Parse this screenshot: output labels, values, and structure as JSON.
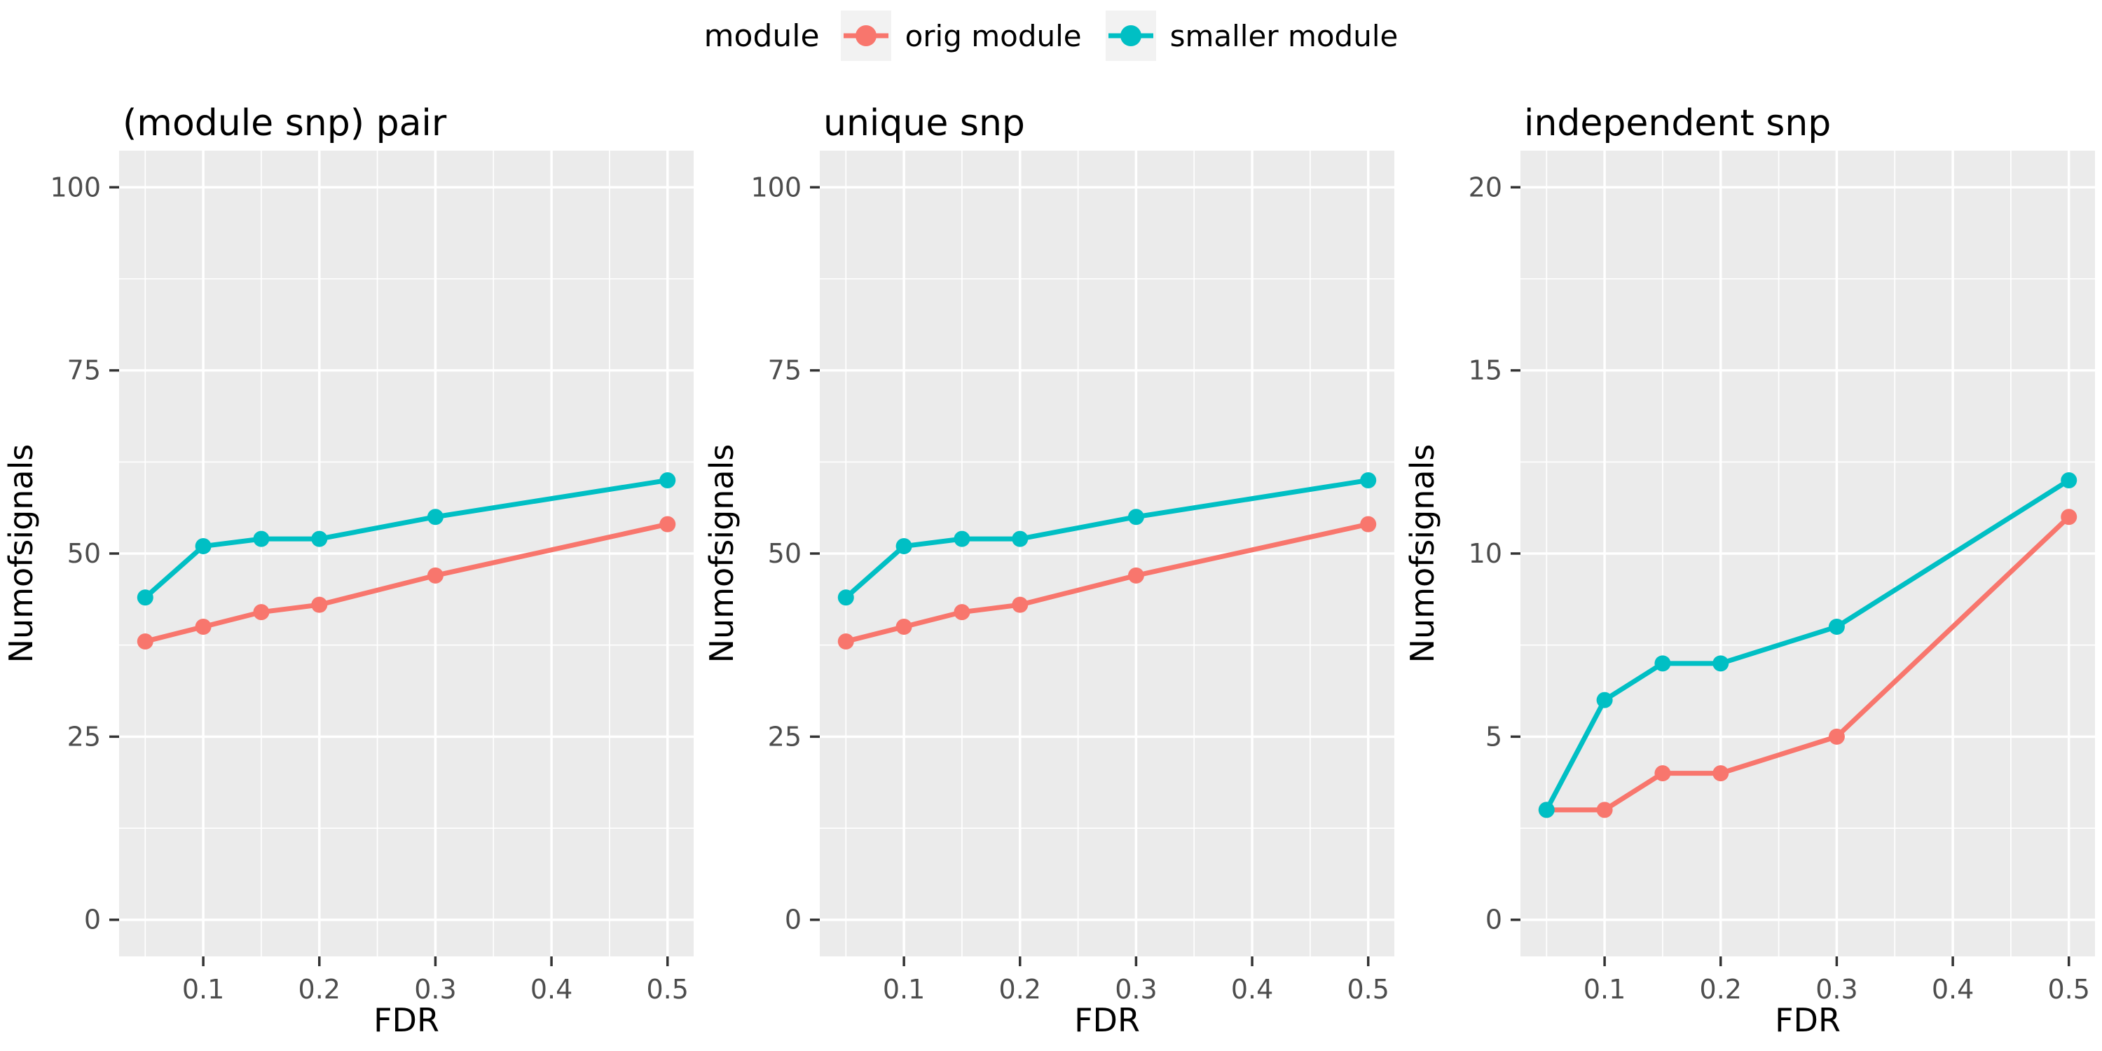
{
  "colors": {
    "orig_module": "#F8766D",
    "smaller_module": "#00BFC4",
    "panel_background": "#EBEBEB",
    "gridline": "#FFFFFF",
    "tick_label": "#4D4D4D",
    "tick_mark": "#333333",
    "title_text": "#000000",
    "legend_key_background": "#F2F2F2"
  },
  "legend": {
    "title": "module",
    "items": [
      {
        "label": "orig module",
        "color": "#F8766D"
      },
      {
        "label": "smaller module",
        "color": "#00BFC4"
      }
    ]
  },
  "chart_data": {
    "type": "line",
    "x": [
      0.05,
      0.1,
      0.15,
      0.2,
      0.3,
      0.5
    ],
    "xticks": [
      0.1,
      0.2,
      0.3,
      0.4,
      0.5
    ],
    "xtick_labels": [
      "0.1",
      "0.2",
      "0.3",
      "0.4",
      "0.5"
    ],
    "xlabel": "FDR",
    "ylabel": "Numofsignals",
    "xlim": [
      0.0275,
      0.5225
    ],
    "grid": true,
    "legend_position": "top",
    "marker": "circle",
    "panels": [
      {
        "title": "(module snp) pair",
        "ylim": [
          0,
          100
        ],
        "yticks": [
          0,
          25,
          50,
          75,
          100
        ],
        "ytick_labels": [
          "0",
          "25",
          "50",
          "75",
          "100"
        ],
        "series": [
          {
            "name": "orig module",
            "color": "#F8766D",
            "values": [
              38,
              40,
              42,
              43,
              47,
              54
            ]
          },
          {
            "name": "smaller module",
            "color": "#00BFC4",
            "values": [
              44,
              51,
              52,
              52,
              55,
              60
            ]
          }
        ]
      },
      {
        "title": "unique snp",
        "ylim": [
          0,
          100
        ],
        "yticks": [
          0,
          25,
          50,
          75,
          100
        ],
        "ytick_labels": [
          "0",
          "25",
          "50",
          "75",
          "100"
        ],
        "series": [
          {
            "name": "orig module",
            "color": "#F8766D",
            "values": [
              38,
              40,
              42,
              43,
              47,
              54
            ]
          },
          {
            "name": "smaller module",
            "color": "#00BFC4",
            "values": [
              44,
              51,
              52,
              52,
              55,
              60
            ]
          }
        ]
      },
      {
        "title": "independent snp",
        "ylim": [
          0,
          20
        ],
        "yticks": [
          0,
          5,
          10,
          15,
          20
        ],
        "ytick_labels": [
          "0",
          "5",
          "10",
          "15",
          "20"
        ],
        "series": [
          {
            "name": "orig module",
            "color": "#F8766D",
            "values": [
              3,
              3,
              4,
              4,
              5,
              11
            ]
          },
          {
            "name": "smaller module",
            "color": "#00BFC4",
            "values": [
              3,
              6,
              7,
              7,
              8,
              12
            ]
          }
        ]
      }
    ]
  }
}
